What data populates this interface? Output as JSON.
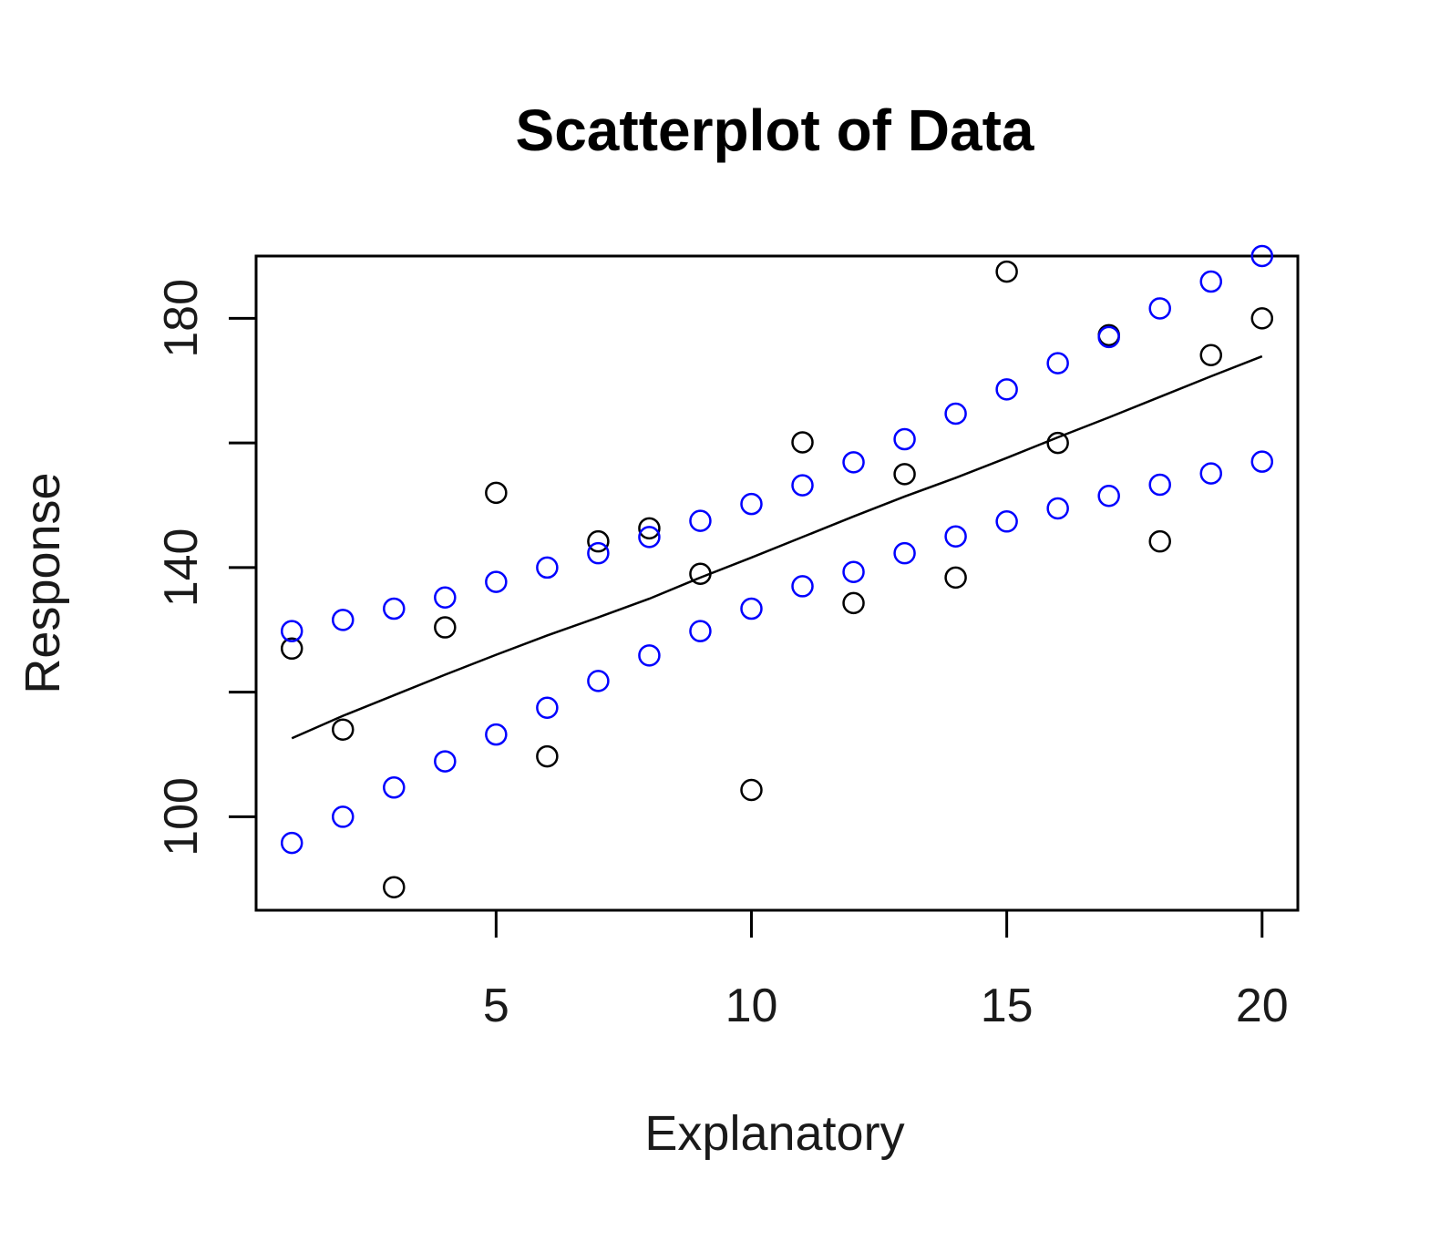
{
  "chart_data": {
    "type": "scatter",
    "title": "Scatterplot of Data",
    "xlabel": "Explanatory",
    "ylabel": "Response",
    "xlim": [
      0.3,
      20.7
    ],
    "ylim": [
      85,
      190
    ],
    "x_ticks": [
      5,
      10,
      15,
      20
    ],
    "y_ticks": [
      100,
      120,
      140,
      160,
      180
    ],
    "y_tick_labels": [
      "100",
      "",
      "140",
      "",
      "180"
    ],
    "grid": false,
    "colors": {
      "observed": "#000000",
      "bounds": "#0000ff",
      "fit_line": "#000000"
    },
    "x": [
      1,
      2,
      3,
      4,
      5,
      6,
      7,
      8,
      9,
      10,
      11,
      12,
      13,
      14,
      15,
      16,
      17,
      18,
      19,
      20
    ],
    "series": [
      {
        "marker": "open-circle",
        "color": "#000000",
        "values": [
          127,
          114,
          88.7,
          130.4,
          152,
          109.7,
          144.2,
          146.3,
          139,
          104.3,
          160.1,
          134.3,
          155,
          138.4,
          187.5,
          160,
          177.3,
          144.2,
          174.1,
          180
        ]
      },
      {
        "marker": "open-circle",
        "color": "#0000ff",
        "values": [
          129.8,
          131.6,
          133.4,
          135.2,
          137.7,
          140,
          142.3,
          144.9,
          147.5,
          150.2,
          153.2,
          156.9,
          160.6,
          164.7,
          168.6,
          172.8,
          177,
          181.6,
          185.9,
          190
        ]
      },
      {
        "marker": "open-circle",
        "color": "#0000ff",
        "values": [
          95.8,
          100,
          104.7,
          108.9,
          113.2,
          117.5,
          121.8,
          125.9,
          129.8,
          133.4,
          137,
          139.3,
          142.3,
          145,
          147.4,
          149.5,
          151.5,
          153.3,
          155.1,
          157
        ]
      },
      {
        "type": "line",
        "color": "#000000",
        "values": [
          112.6,
          116.2,
          119.5,
          122.8,
          126.0,
          129.1,
          132.0,
          135.0,
          138.4,
          141.6,
          144.9,
          148.2,
          151.4,
          154.4,
          157.6,
          160.9,
          164.1,
          167.4,
          170.7,
          173.9
        ]
      }
    ]
  }
}
